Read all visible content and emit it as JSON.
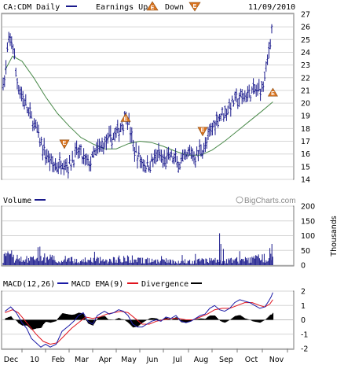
{
  "chart_data": [
    {
      "type": "line",
      "panel": "price",
      "title": "CA:CDM Daily",
      "date": "11/09/2010",
      "legend": [
        {
          "label": "Earnings Up",
          "marker": "E",
          "direction": "up"
        },
        {
          "label": "Down",
          "marker": "E",
          "direction": "down"
        }
      ],
      "x_tick_labels": [
        "Dec",
        "10",
        "Feb",
        "Mar",
        "Apr",
        "May",
        "Jun",
        "Jul",
        "Aug",
        "Sep",
        "Oct",
        "Nov"
      ],
      "x_tick_month_index": [
        1,
        2,
        3,
        4,
        5,
        6,
        7,
        8,
        9,
        10,
        11,
        12
      ],
      "y_tick_labels": [
        "27",
        "26",
        "25",
        "24",
        "23",
        "22",
        "21",
        "20",
        "19",
        "18",
        "17",
        "16",
        "15",
        "14"
      ],
      "ylim": [
        14,
        27
      ],
      "price_keypoints_month_index": [
        [
          0.1,
          21.8
        ],
        [
          0.25,
          24.5
        ],
        [
          0.45,
          25.0
        ],
        [
          0.55,
          24.2
        ],
        [
          0.7,
          22.0
        ],
        [
          0.85,
          21.2
        ],
        [
          1.0,
          20.6
        ],
        [
          1.2,
          19.6
        ],
        [
          1.4,
          18.8
        ],
        [
          1.6,
          18.0
        ],
        [
          1.8,
          16.8
        ],
        [
          2.0,
          16.0
        ],
        [
          2.3,
          15.2
        ],
        [
          2.5,
          15.0
        ],
        [
          2.75,
          15.5
        ],
        [
          3.0,
          15.0
        ],
        [
          3.2,
          15.8
        ],
        [
          3.4,
          16.2
        ],
        [
          3.6,
          15.6
        ],
        [
          3.85,
          15.2
        ],
        [
          4.1,
          16.0
        ],
        [
          4.3,
          16.5
        ],
        [
          4.6,
          17.0
        ],
        [
          4.9,
          17.4
        ],
        [
          5.1,
          17.8
        ],
        [
          5.3,
          18.5
        ],
        [
          5.45,
          19.2
        ],
        [
          5.55,
          18.2
        ],
        [
          5.75,
          16.3
        ],
        [
          6.0,
          15.6
        ],
        [
          6.3,
          15.0
        ],
        [
          6.6,
          15.6
        ],
        [
          6.8,
          15.9
        ],
        [
          7.0,
          15.4
        ],
        [
          7.3,
          15.8
        ],
        [
          7.6,
          15.2
        ],
        [
          7.9,
          15.6
        ],
        [
          8.1,
          16.2
        ],
        [
          8.3,
          15.7
        ],
        [
          8.5,
          16.4
        ],
        [
          8.7,
          16.5
        ],
        [
          8.9,
          17.5
        ],
        [
          9.1,
          18.5
        ],
        [
          9.3,
          19.0
        ],
        [
          9.6,
          19.5
        ],
        [
          9.9,
          20.2
        ],
        [
          10.2,
          20.4
        ],
        [
          10.5,
          20.8
        ],
        [
          10.8,
          21.0
        ],
        [
          11.0,
          21.2
        ],
        [
          11.15,
          22.6
        ],
        [
          11.25,
          24.0
        ],
        [
          11.35,
          25.6
        ],
        [
          11.42,
          26.2
        ]
      ],
      "moving_average_keypoints_month_index": [
        [
          0.1,
          22.6
        ],
        [
          0.5,
          23.7
        ],
        [
          1.0,
          23.3
        ],
        [
          1.5,
          22.0
        ],
        [
          2.0,
          20.5
        ],
        [
          2.5,
          19.2
        ],
        [
          3.0,
          18.2
        ],
        [
          3.5,
          17.3
        ],
        [
          4.0,
          16.8
        ],
        [
          4.5,
          16.4
        ],
        [
          5.0,
          16.4
        ],
        [
          5.5,
          16.8
        ],
        [
          6.0,
          17.0
        ],
        [
          6.5,
          16.9
        ],
        [
          7.0,
          16.6
        ],
        [
          7.5,
          16.2
        ],
        [
          8.0,
          15.9
        ],
        [
          8.5,
          15.9
        ],
        [
          9.0,
          16.3
        ],
        [
          9.5,
          17.0
        ],
        [
          10.0,
          17.8
        ],
        [
          10.5,
          18.6
        ],
        [
          11.0,
          19.4
        ],
        [
          11.42,
          20.1
        ]
      ],
      "earnings_markers": [
        {
          "month_index": 2.8,
          "price": 16.8,
          "direction": "down"
        },
        {
          "month_index": 5.4,
          "price": 18.8,
          "direction": "up"
        },
        {
          "month_index": 8.6,
          "price": 17.8,
          "direction": "down"
        },
        {
          "month_index": 11.42,
          "price": 20.8,
          "direction": "up"
        }
      ],
      "watermark": "BigCharts.com"
    },
    {
      "type": "bar",
      "panel": "volume",
      "title": "Volume",
      "unit_label": "Thousands",
      "y_tick_labels": [
        "200",
        "150",
        "100",
        "50",
        "0"
      ],
      "ylim": [
        0,
        200
      ],
      "volume_profile_month_index": [
        [
          0,
          32
        ],
        [
          0.5,
          38
        ],
        [
          1,
          22
        ],
        [
          1.5,
          26
        ],
        [
          2,
          30
        ],
        [
          2.5,
          22
        ],
        [
          3,
          25
        ],
        [
          3.5,
          20
        ],
        [
          4,
          22
        ],
        [
          4.5,
          20
        ],
        [
          5,
          24
        ],
        [
          5.5,
          26
        ],
        [
          6,
          22
        ],
        [
          6.5,
          18
        ],
        [
          7,
          18
        ],
        [
          7.5,
          16
        ],
        [
          8,
          15
        ],
        [
          8.5,
          18
        ],
        [
          9,
          20
        ],
        [
          9.5,
          18
        ],
        [
          10,
          20
        ],
        [
          10.5,
          24
        ],
        [
          11,
          30
        ],
        [
          11.42,
          40
        ]
      ],
      "volume_spikes": [
        {
          "month_index": 9.3,
          "value": 108
        },
        {
          "month_index": 9.35,
          "value": 72
        },
        {
          "month_index": 9.45,
          "value": 55
        },
        {
          "month_index": 11.3,
          "value": 58
        },
        {
          "month_index": 11.38,
          "value": 72
        }
      ]
    },
    {
      "type": "line",
      "panel": "macd",
      "legend": [
        {
          "label": "MACD(12,26)",
          "color": "#1a1aa6"
        },
        {
          "label": "MACD EMA(9)",
          "color": "#e0141e"
        },
        {
          "label": "Divergence",
          "color": "#000000"
        }
      ],
      "y_tick_labels": [
        "2",
        "1",
        "0",
        "-1",
        "-2"
      ],
      "ylim": [
        -2,
        2
      ],
      "macd_keypoints_month_index": [
        [
          0.1,
          0.6
        ],
        [
          0.4,
          0.9
        ],
        [
          0.7,
          0.5
        ],
        [
          1.0,
          -0.2
        ],
        [
          1.2,
          -0.6
        ],
        [
          1.4,
          -1.3
        ],
        [
          1.6,
          -1.6
        ],
        [
          1.8,
          -1.9
        ],
        [
          2.0,
          -1.7
        ],
        [
          2.2,
          -1.9
        ],
        [
          2.45,
          -1.7
        ],
        [
          2.7,
          -0.8
        ],
        [
          3.0,
          -0.4
        ],
        [
          3.2,
          -0.1
        ],
        [
          3.4,
          0.3
        ],
        [
          3.6,
          0.5
        ],
        [
          3.8,
          -0.1
        ],
        [
          4.0,
          -0.3
        ],
        [
          4.2,
          0.3
        ],
        [
          4.5,
          0.6
        ],
        [
          4.7,
          0.4
        ],
        [
          4.9,
          0.5
        ],
        [
          5.1,
          0.7
        ],
        [
          5.3,
          0.6
        ],
        [
          5.5,
          0.3
        ],
        [
          5.7,
          -0.3
        ],
        [
          5.9,
          -0.5
        ],
        [
          6.1,
          -0.5
        ],
        [
          6.3,
          -0.3
        ],
        [
          6.5,
          -0.1
        ],
        [
          6.7,
          0.0
        ],
        [
          6.9,
          -0.1
        ],
        [
          7.1,
          0.2
        ],
        [
          7.3,
          0.1
        ],
        [
          7.5,
          0.3
        ],
        [
          7.7,
          -0.1
        ],
        [
          7.9,
          -0.2
        ],
        [
          8.1,
          -0.1
        ],
        [
          8.3,
          0.1
        ],
        [
          8.5,
          0.3
        ],
        [
          8.7,
          0.4
        ],
        [
          8.9,
          0.8
        ],
        [
          9.1,
          1.0
        ],
        [
          9.3,
          0.7
        ],
        [
          9.5,
          0.6
        ],
        [
          9.7,
          0.8
        ],
        [
          9.9,
          1.2
        ],
        [
          10.1,
          1.4
        ],
        [
          10.3,
          1.3
        ],
        [
          10.5,
          1.2
        ],
        [
          10.7,
          1.0
        ],
        [
          10.9,
          0.8
        ],
        [
          11.1,
          0.9
        ],
        [
          11.25,
          1.3
        ],
        [
          11.35,
          1.6
        ],
        [
          11.42,
          1.9
        ]
      ],
      "signal_keypoints_month_index": [
        [
          0.1,
          0.5
        ],
        [
          0.5,
          0.7
        ],
        [
          0.8,
          0.5
        ],
        [
          1.0,
          0.2
        ],
        [
          1.3,
          -0.4
        ],
        [
          1.6,
          -1.0
        ],
        [
          1.9,
          -1.5
        ],
        [
          2.2,
          -1.7
        ],
        [
          2.5,
          -1.6
        ],
        [
          2.8,
          -1.1
        ],
        [
          3.1,
          -0.6
        ],
        [
          3.4,
          -0.2
        ],
        [
          3.7,
          0.2
        ],
        [
          4.0,
          0.1
        ],
        [
          4.3,
          0.2
        ],
        [
          4.6,
          0.4
        ],
        [
          4.9,
          0.5
        ],
        [
          5.2,
          0.6
        ],
        [
          5.5,
          0.5
        ],
        [
          5.8,
          0.1
        ],
        [
          6.1,
          -0.3
        ],
        [
          6.4,
          -0.3
        ],
        [
          6.7,
          -0.1
        ],
        [
          7.0,
          0.0
        ],
        [
          7.3,
          0.1
        ],
        [
          7.6,
          0.1
        ],
        [
          7.9,
          0.0
        ],
        [
          8.2,
          0.0
        ],
        [
          8.5,
          0.2
        ],
        [
          8.8,
          0.4
        ],
        [
          9.1,
          0.7
        ],
        [
          9.4,
          0.8
        ],
        [
          9.7,
          0.8
        ],
        [
          10.0,
          1.0
        ],
        [
          10.3,
          1.2
        ],
        [
          10.6,
          1.2
        ],
        [
          10.9,
          1.0
        ],
        [
          11.1,
          0.9
        ],
        [
          11.3,
          1.1
        ],
        [
          11.42,
          1.4
        ]
      ]
    }
  ]
}
